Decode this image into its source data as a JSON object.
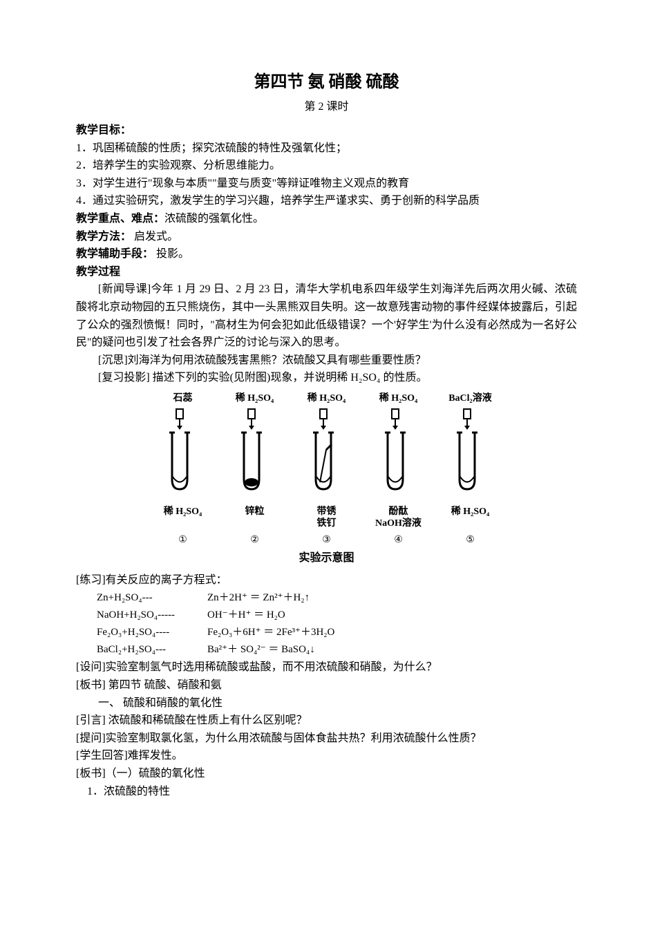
{
  "title": "第四节  氨  硝酸  硫酸",
  "subtitle": "第 2 课时",
  "headings": {
    "goals": "教学目标：",
    "emphasis_label": "教学重点、难点：",
    "emphasis_text": "浓硫酸的强氧化性。",
    "method_label": "教学方法：",
    "method_text": "  启发式。",
    "aid_label": "教学辅助手段：",
    "aid_text": "  投影。",
    "process": "教学过程"
  },
  "goals": {
    "g1": "1．巩固稀硫酸的性质；探究浓硫酸的特性及强氧化性；",
    "g2": "2．培养学生的实验观察、分析思维能力。",
    "g3": "3．对学生进行\"现象与本质\"\"量变与质变\"等辩证唯物主义观点的教育",
    "g4": "4．通过实验研究，激发学生的学习兴趣，培养学生严谨求实、勇于创新的科学品质"
  },
  "paragraphs": {
    "news": "[新闻导课]今年 1 月 29 日、2 月 23 日，清华大学机电系四年级学生刘海洋先后两次用火碱、浓硫酸将北京动物园的五只熊烧伤，其中一头黑熊双目失明。这一故意残害动物的事件经媒体披露后，引起了公众的强烈愤慨！同时，\"高材生为何会犯如此低级错误？一个'好学生'为什么没有必然成为一名好公民\"的疑问也引发了社会各界广泛的讨论与深入的思考。",
    "reflect": "[沉思]刘海洋为何用浓硫酸残害黑熊？浓硫酸又具有哪些重要性质？",
    "review": "[复习投影]  描述下列的实验(见附图)现象，并说明稀 H₂SO₄ 的性质。",
    "practice_label": "[练习]有关反应的离子方程式：",
    "question": "[设问]实验室制氢气时选用稀硫酸或盐酸，而不用浓硫酸和硝酸，为什么？",
    "board1": "[板书]  第四节        硫酸、硝酸和氨",
    "section1": "一、 硫酸和硝酸的氧化性",
    "intro": "[引言]  浓硫酸和稀硫酸在性质上有什么区别呢？",
    "ask": "[提问]实验室制取氯化氢，为什么用浓硫酸与固体食盐共热？利用浓硫酸什么性质？",
    "answer": "[学生回答]难挥发性。",
    "board2": "[板书]（一）硫酸的氧化性",
    "sub1": "1．浓硫酸的特性"
  },
  "diagram": {
    "caption": "实验示意图",
    "tubes": [
      {
        "top": "石蕊",
        "bottom": "稀 H₂SO₄",
        "num": "①",
        "content": "liquid"
      },
      {
        "top": "稀 H₂SO₄",
        "bottom": "锌粒",
        "num": "②",
        "content": "black"
      },
      {
        "top": "稀 H₂SO₄",
        "bottom": "带锈\n铁钉",
        "num": "③",
        "content": "nail"
      },
      {
        "top": "稀 H₂SO₄",
        "bottom": "酚酞\nNaOH溶液",
        "num": "④",
        "content": "liquid"
      },
      {
        "top": "BaCl₂溶液",
        "bottom": "稀 H₂SO₄",
        "num": "⑤",
        "content": "liquid"
      }
    ]
  },
  "equations": [
    {
      "left": "Zn+H₂SO₄---",
      "right": "Zn＋2H⁺ ＝ Zn²⁺＋H₂↑"
    },
    {
      "left": "NaOH+H₂SO₄-----",
      "right": "OH⁻＋H⁺ ＝ H₂O"
    },
    {
      "left": "Fe₂O₃+H₂SO₄----",
      "right": "Fe₂O₃＋6H⁺ ＝ 2Fe³⁺＋3H₂O"
    },
    {
      "left": "BaCl₂+H₂SO₄---",
      "right": "Ba²⁺＋ SO₄²⁻ ＝ BaSO₄↓"
    }
  ],
  "colors": {
    "text": "#000000",
    "bg": "#ffffff"
  }
}
